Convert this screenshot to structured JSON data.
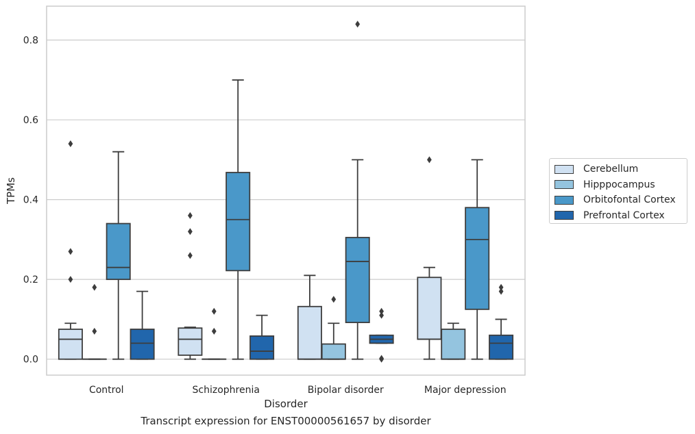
{
  "chart_data": {
    "type": "box",
    "caption": "Transcript expression for ENST00000561657 by disorder",
    "xlabel": "Disorder",
    "ylabel": "TPMs",
    "ylim": [
      -0.04,
      0.885
    ],
    "yticks": [
      0.0,
      0.2,
      0.4,
      0.6,
      0.8
    ],
    "ytick_labels": [
      "0.0",
      "0.2",
      "0.4",
      "0.6",
      "0.8"
    ],
    "grid": true,
    "legend_position": "right",
    "categories": [
      "Control",
      "Schizophrenia",
      "Bipolar disorder",
      "Major depression"
    ],
    "series": [
      {
        "name": "Cerebellum",
        "color": "#d0e1f2",
        "boxes": [
          {
            "whislo": 0.0,
            "q1": 0.0,
            "med": 0.05,
            "q3": 0.075,
            "whishi": 0.09,
            "fliers": [
              0.2,
              0.27,
              0.54
            ]
          },
          {
            "whislo": 0.0,
            "q1": 0.01,
            "med": 0.05,
            "q3": 0.078,
            "whishi": 0.08,
            "fliers": [
              0.26,
              0.32,
              0.36
            ]
          },
          {
            "whislo": 0.0,
            "q1": 0.0,
            "med": 0.0,
            "q3": 0.132,
            "whishi": 0.21,
            "fliers": []
          },
          {
            "whislo": 0.0,
            "q1": 0.05,
            "med": 0.05,
            "q3": 0.205,
            "whishi": 0.23,
            "fliers": [
              0.5
            ]
          }
        ]
      },
      {
        "name": "Hipppocampus",
        "color": "#94c4df",
        "boxes": [
          {
            "whislo": 0.0,
            "q1": 0.0,
            "med": 0.0,
            "q3": 0.0,
            "whishi": 0.0,
            "fliers": [
              0.07,
              0.18
            ]
          },
          {
            "whislo": 0.0,
            "q1": 0.0,
            "med": 0.0,
            "q3": 0.0,
            "whishi": 0.0,
            "fliers": [
              0.07,
              0.12
            ]
          },
          {
            "whislo": 0.0,
            "q1": 0.0,
            "med": 0.0,
            "q3": 0.038,
            "whishi": 0.09,
            "fliers": [
              0.15
            ]
          },
          {
            "whislo": 0.0,
            "q1": 0.0,
            "med": 0.0,
            "q3": 0.075,
            "whishi": 0.09,
            "fliers": []
          }
        ]
      },
      {
        "name": "Orbitofontal Cortex",
        "color": "#4a98c9",
        "boxes": [
          {
            "whislo": 0.0,
            "q1": 0.2,
            "med": 0.23,
            "q3": 0.34,
            "whishi": 0.52,
            "fliers": []
          },
          {
            "whislo": 0.0,
            "q1": 0.222,
            "med": 0.35,
            "q3": 0.468,
            "whishi": 0.7,
            "fliers": []
          },
          {
            "whislo": 0.0,
            "q1": 0.092,
            "med": 0.245,
            "q3": 0.305,
            "whishi": 0.5,
            "fliers": [
              0.84
            ]
          },
          {
            "whislo": 0.0,
            "q1": 0.125,
            "med": 0.3,
            "q3": 0.38,
            "whishi": 0.5,
            "fliers": []
          }
        ]
      },
      {
        "name": "Prefrontal Cortex",
        "color": "#2166ac",
        "boxes": [
          {
            "whislo": 0.0,
            "q1": 0.0,
            "med": 0.04,
            "q3": 0.075,
            "whishi": 0.17,
            "fliers": []
          },
          {
            "whislo": 0.0,
            "q1": 0.0,
            "med": 0.02,
            "q3": 0.058,
            "whishi": 0.11,
            "fliers": []
          },
          {
            "whislo": 0.04,
            "q1": 0.04,
            "med": 0.05,
            "q3": 0.06,
            "whishi": 0.06,
            "fliers": [
              0.0,
              0.002,
              0.11,
              0.12
            ]
          },
          {
            "whislo": 0.0,
            "q1": 0.0,
            "med": 0.04,
            "q3": 0.06,
            "whishi": 0.1,
            "fliers": [
              0.17,
              0.18
            ]
          }
        ]
      }
    ]
  }
}
